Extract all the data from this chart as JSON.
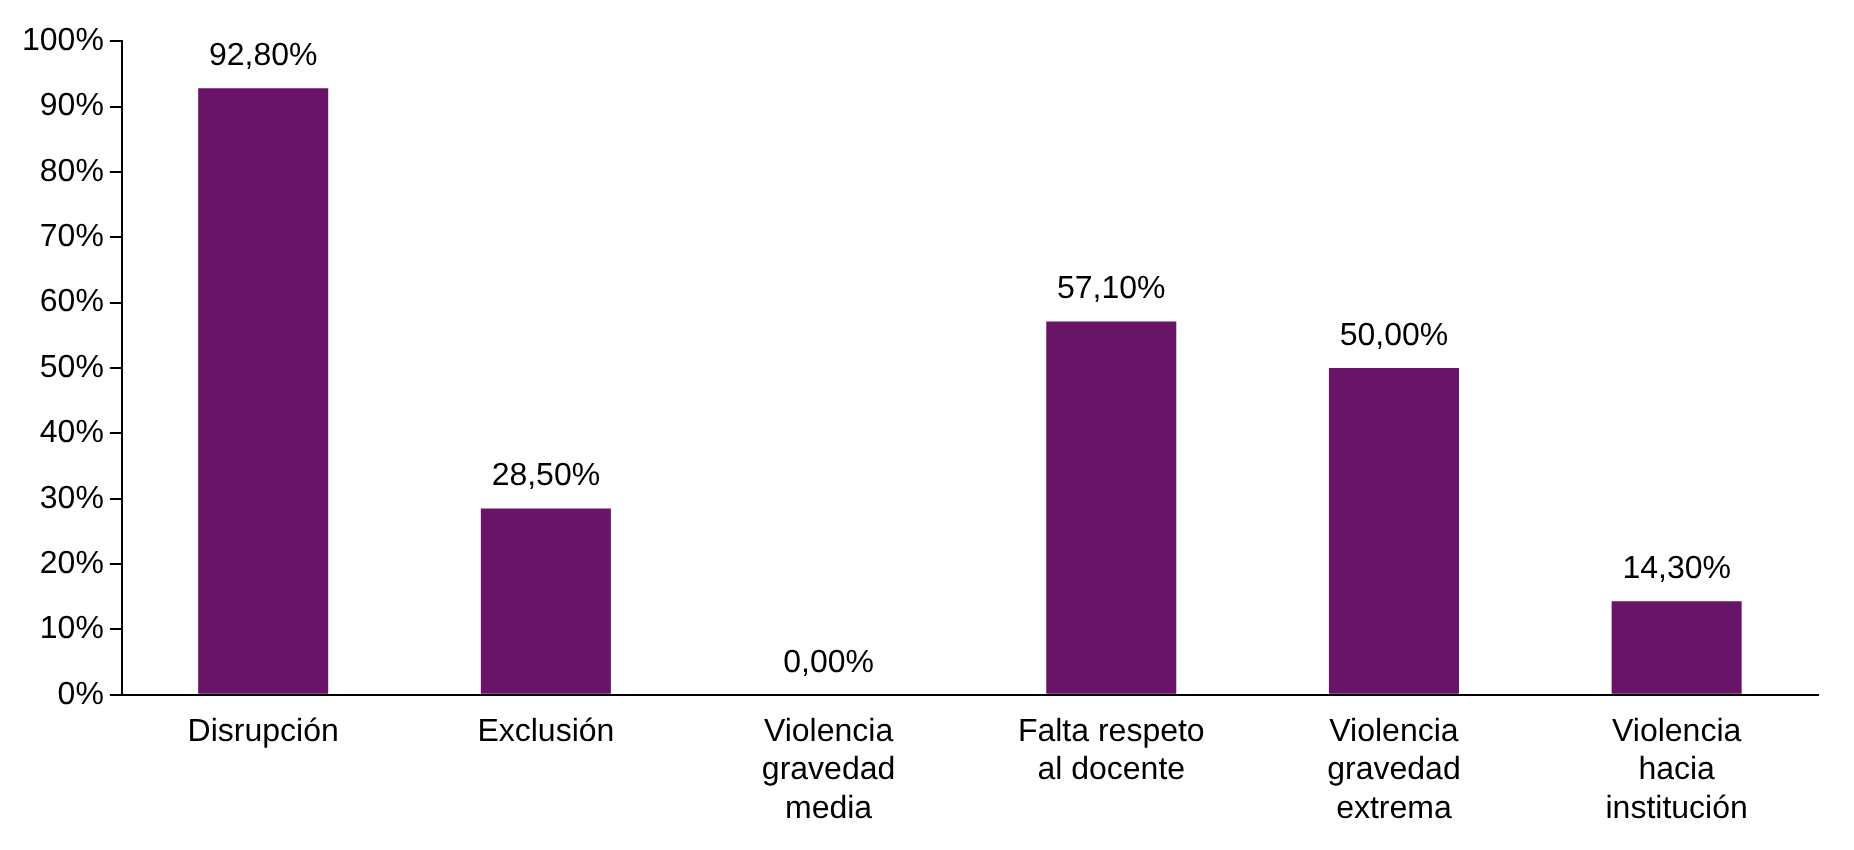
{
  "chart_data": {
    "type": "bar",
    "categories": [
      "Disrupción",
      "Exclusión",
      "Violencia gravedad media",
      "Falta respeto al docente",
      "Violencia gravedad extrema",
      "Violencia hacia institución"
    ],
    "values": [
      92.8,
      28.5,
      0,
      57.1,
      50,
      14.3
    ],
    "value_labels": [
      "92,80%",
      "28,50%",
      "0,00%",
      "57,10%",
      "50,00%",
      "14,30%"
    ],
    "color": "#6a1468",
    "ylim": [
      0,
      100
    ],
    "yticks": [
      {
        "value": 0,
        "label": "0%"
      },
      {
        "value": 10,
        "label": "10%"
      },
      {
        "value": 20,
        "label": "20%"
      },
      {
        "value": 30,
        "label": "30%"
      },
      {
        "value": 40,
        "label": "40%"
      },
      {
        "value": 50,
        "label": "50%"
      },
      {
        "value": 60,
        "label": "60%"
      },
      {
        "value": 70,
        "label": "70%"
      },
      {
        "value": 80,
        "label": "80%"
      },
      {
        "value": 90,
        "label": "90%"
      },
      {
        "value": 100,
        "label": "100%"
      }
    ],
    "grid": false,
    "legend": false
  }
}
